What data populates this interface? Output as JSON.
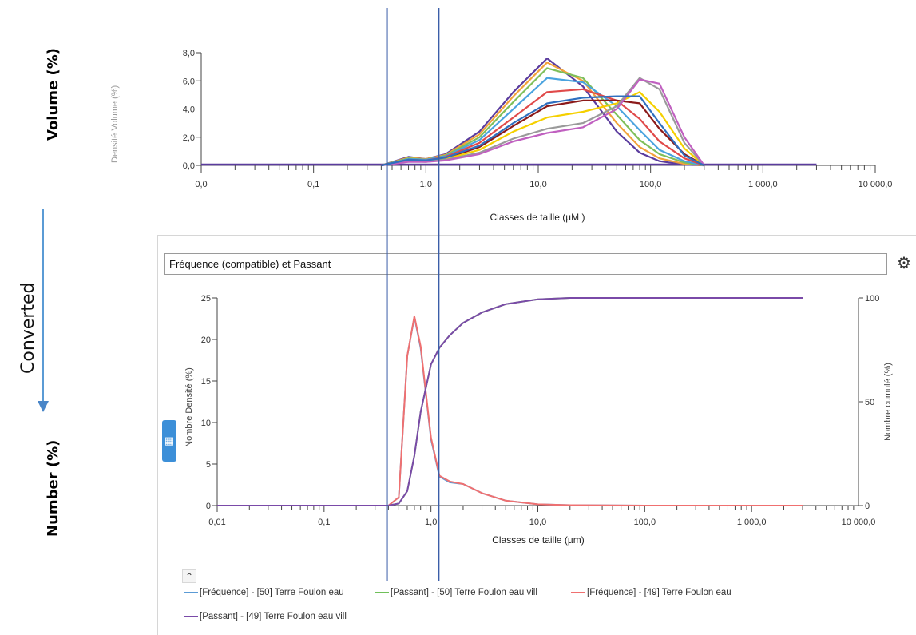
{
  "side_labels": {
    "volume": "Volume (%)",
    "converted": "Converted",
    "number": "Number (%)"
  },
  "panel": {
    "dropdown_value": "Fréquence (compatible) et Passant",
    "gear_icon": "gear-icon",
    "side_tab_icon": "grid-icon",
    "collapse_icon": "chevron-up-icon"
  },
  "legend": [
    {
      "label": "[Fréquence] - [50] Terre Foulon eau",
      "color": "#5b9bd5"
    },
    {
      "label": "[Passant] - [50] Terre Foulon eau vill",
      "color": "#70c05a"
    },
    {
      "label": "[Fréquence] - [49] Terre Foulon eau",
      "color": "#f07070"
    },
    {
      "label": "[Passant] - [49] Terre Foulon eau vill",
      "color": "#7a4aa8"
    }
  ],
  "chart_data": [
    {
      "type": "line",
      "ylabel": "Densité Volume (%)",
      "xlabel": "Classes de taille (µM )",
      "x_scale": "log",
      "xlim": [
        0.01,
        10000
      ],
      "ylim": [
        0,
        8
      ],
      "x_tick_labels": [
        "0,0",
        "0,1",
        "1,0",
        "10,0",
        "100,0",
        "1 000,0",
        "10 000,0"
      ],
      "y_tick_labels": [
        "0,0",
        "2,0",
        "4,0",
        "6,0",
        "8,0"
      ],
      "grid": false,
      "series_colors": [
        "#5b3c9e",
        "#f2a23a",
        "#7fbf5a",
        "#4aa3df",
        "#e04a4a",
        "#8b1a1a",
        "#f5d000",
        "#9a9a9a",
        "#c060c0",
        "#2f6fbf",
        "#b97a57",
        "#5aa0a0",
        "#d04040",
        "#3aa0d8",
        "#9a3fa0"
      ],
      "series": [
        {
          "x": [
            0.4,
            0.7,
            1.0,
            1.5,
            3,
            6,
            12,
            25,
            50,
            80,
            120,
            200,
            300
          ],
          "values": [
            0,
            0.6,
            0.45,
            0.8,
            2.4,
            5.2,
            7.6,
            5.6,
            2.4,
            0.9,
            0.3,
            0.05,
            0
          ]
        },
        {
          "x": [
            0.4,
            0.7,
            1.0,
            1.5,
            3,
            6,
            12,
            25,
            50,
            80,
            120,
            200,
            300
          ],
          "values": [
            0,
            0.55,
            0.45,
            0.75,
            2.2,
            4.9,
            7.3,
            6.0,
            3.0,
            1.3,
            0.5,
            0.1,
            0
          ]
        },
        {
          "x": [
            0.4,
            0.7,
            1.0,
            1.5,
            3,
            6,
            12,
            25,
            50,
            80,
            120,
            200,
            300
          ],
          "values": [
            0,
            0.5,
            0.4,
            0.7,
            2.0,
            4.5,
            6.9,
            6.2,
            3.6,
            1.8,
            0.8,
            0.2,
            0
          ]
        },
        {
          "x": [
            0.4,
            0.7,
            1.0,
            1.5,
            3,
            6,
            12,
            25,
            50,
            80,
            120,
            200,
            300
          ],
          "values": [
            0,
            0.45,
            0.4,
            0.65,
            1.8,
            4.0,
            6.2,
            5.9,
            4.2,
            2.5,
            1.1,
            0.3,
            0
          ]
        },
        {
          "x": [
            0.4,
            0.7,
            1.0,
            1.5,
            3,
            6,
            12,
            25,
            50,
            80,
            120,
            200,
            300
          ],
          "values": [
            0,
            0.4,
            0.35,
            0.6,
            1.6,
            3.4,
            5.2,
            5.4,
            4.6,
            3.3,
            1.7,
            0.5,
            0
          ]
        },
        {
          "x": [
            0.4,
            0.7,
            1.0,
            1.5,
            3,
            6,
            12,
            25,
            50,
            80,
            120,
            200,
            300
          ],
          "values": [
            0,
            0.35,
            0.3,
            0.5,
            1.3,
            2.8,
            4.2,
            4.6,
            4.6,
            4.4,
            2.6,
            0.8,
            0
          ]
        },
        {
          "x": [
            0.4,
            0.7,
            1.0,
            1.5,
            3,
            6,
            12,
            25,
            50,
            80,
            120,
            200,
            300
          ],
          "values": [
            0,
            0.3,
            0.3,
            0.45,
            1.1,
            2.4,
            3.4,
            3.8,
            4.4,
            5.2,
            3.8,
            1.2,
            0
          ]
        },
        {
          "x": [
            0.4,
            0.7,
            1.0,
            1.5,
            3,
            6,
            12,
            25,
            50,
            80,
            120,
            200,
            300
          ],
          "values": [
            0,
            0.3,
            0.25,
            0.4,
            0.9,
            1.9,
            2.6,
            3.0,
            4.2,
            6.2,
            5.4,
            1.6,
            0
          ]
        },
        {
          "x": [
            0.4,
            0.7,
            1.0,
            1.5,
            3,
            6,
            12,
            25,
            50,
            80,
            120,
            200,
            300
          ],
          "values": [
            0,
            0.25,
            0.25,
            0.35,
            0.8,
            1.7,
            2.3,
            2.7,
            4.0,
            6.1,
            5.8,
            2.0,
            0
          ]
        },
        {
          "x": [
            0.4,
            0.7,
            1.0,
            1.5,
            3,
            6,
            12,
            25,
            50,
            80,
            120,
            200,
            300
          ],
          "values": [
            0,
            0.4,
            0.35,
            0.55,
            1.4,
            3.0,
            4.4,
            4.8,
            4.9,
            4.9,
            3.0,
            0.7,
            0
          ]
        }
      ]
    },
    {
      "type": "line",
      "ylabel": "Nombre Densité (%)",
      "y2label": "Nombre cumulé (%)",
      "xlabel": "Classes de taille (µm)",
      "x_scale": "log",
      "xlim": [
        0.01,
        10000
      ],
      "ylim": [
        0,
        25
      ],
      "y2lim": [
        0,
        100
      ],
      "x_tick_labels": [
        "0,01",
        "0,1",
        "1,0",
        "10,0",
        "100,0",
        "1 000,0",
        "10 000,0"
      ],
      "y_tick_labels": [
        "0",
        "5",
        "10",
        "15",
        "20",
        "25"
      ],
      "y2_tick_labels": [
        "0",
        "50",
        "100"
      ],
      "grid": false,
      "series": [
        {
          "name": "[Fréquence] - [50] Terre Foulon eau",
          "axis": "left",
          "color": "#5b9bd5",
          "x": [
            0.01,
            0.4,
            0.5,
            0.6,
            0.7,
            0.8,
            1.0,
            1.2,
            1.5,
            2,
            3,
            5,
            10,
            20,
            100,
            3000
          ],
          "values": [
            0,
            0,
            1,
            18,
            22.7,
            19,
            8,
            3.5,
            2.8,
            2.6,
            1.5,
            0.6,
            0.15,
            0.05,
            0,
            0
          ]
        },
        {
          "name": "[Passant] - [50] Terre Foulon eau vill",
          "axis": "right",
          "color": "#70c05a",
          "x": [
            0.01,
            0.4,
            0.5,
            0.6,
            0.7,
            0.8,
            1.0,
            1.2,
            1.5,
            2,
            3,
            5,
            10,
            20,
            100,
            3000
          ],
          "values": [
            0,
            0,
            1,
            7,
            24,
            45,
            68,
            76,
            82,
            88,
            93,
            97,
            99.3,
            100,
            100,
            100
          ]
        },
        {
          "name": "[Fréquence] - [49] Terre Foulon eau",
          "axis": "left",
          "color": "#f07070",
          "x": [
            0.01,
            0.4,
            0.5,
            0.6,
            0.7,
            0.8,
            1.0,
            1.2,
            1.5,
            2,
            3,
            5,
            10,
            20,
            100,
            3000
          ],
          "values": [
            0,
            0,
            1,
            18,
            22.8,
            19.2,
            8.2,
            3.6,
            2.9,
            2.6,
            1.5,
            0.6,
            0.15,
            0.05,
            0,
            0
          ]
        },
        {
          "name": "[Passant] - [49] Terre Foulon eau vill",
          "axis": "right",
          "color": "#7a4aa8",
          "x": [
            0.01,
            0.4,
            0.5,
            0.6,
            0.7,
            0.8,
            1.0,
            1.2,
            1.5,
            2,
            3,
            5,
            10,
            20,
            100,
            3000
          ],
          "values": [
            0,
            0,
            1,
            7,
            24,
            45,
            68,
            76,
            82,
            88,
            93,
            97,
            99.3,
            100,
            100,
            100
          ]
        }
      ]
    }
  ],
  "marker_lines": {
    "x_values_um": [
      0.45,
      1.3
    ],
    "color": "#3b5ea8"
  }
}
